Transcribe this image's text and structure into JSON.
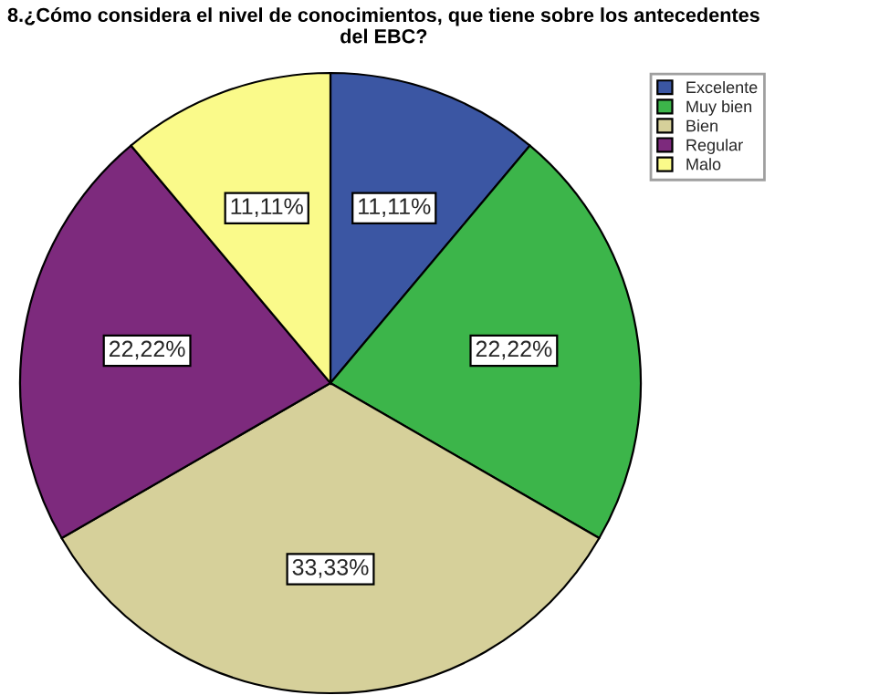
{
  "chart_data": {
    "type": "pie",
    "title": "8.¿Cómo considera el nivel de conocimientos, que tiene sobre los antecedentes\ndel EBC?",
    "categories": [
      "Excelente",
      "Muy bien",
      "Bien",
      "Regular",
      "Malo"
    ],
    "values": [
      11.11,
      22.22,
      33.33,
      22.22,
      11.11
    ],
    "value_labels": [
      "11,11%",
      "22,22%",
      "33,33%",
      "22,22%",
      "11,11%"
    ],
    "colors": [
      "#3b56a3",
      "#3cb54a",
      "#d6d09a",
      "#7d2a7d",
      "#fafa8a"
    ],
    "legend": "top right"
  }
}
